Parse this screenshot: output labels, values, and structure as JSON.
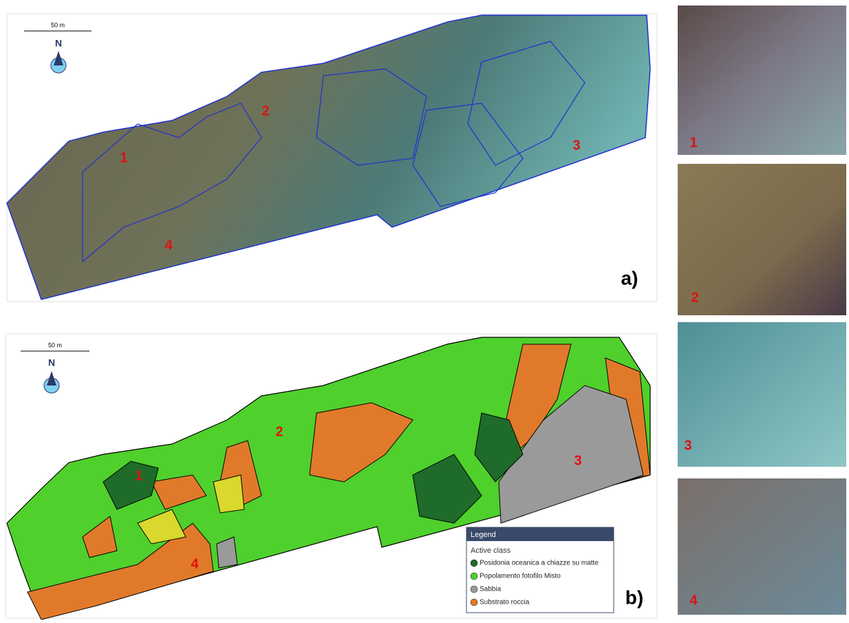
{
  "panel_a": {
    "scale_label": "50 m",
    "north": "N",
    "labels": [
      "1",
      "2",
      "3",
      "4"
    ],
    "tag": "a)"
  },
  "panel_b": {
    "scale_label": "50 m",
    "north": "N",
    "labels": [
      "1",
      "2",
      "3",
      "4"
    ],
    "tag": "b)",
    "legend": {
      "title": "Legend",
      "subtitle": "Active class",
      "classes": [
        {
          "name": "Posidonia oceanica a chiazze su matte",
          "color": "#1f6b2a"
        },
        {
          "name": "Popolamento fotofilo Misto",
          "color": "#4fd02c"
        },
        {
          "name": "Sabbia",
          "color": "#9a9a9a"
        },
        {
          "name": "Substrato roccia",
          "color": "#e07a2a"
        }
      ]
    }
  },
  "thumbnails": [
    "1",
    "2",
    "3",
    "4"
  ]
}
